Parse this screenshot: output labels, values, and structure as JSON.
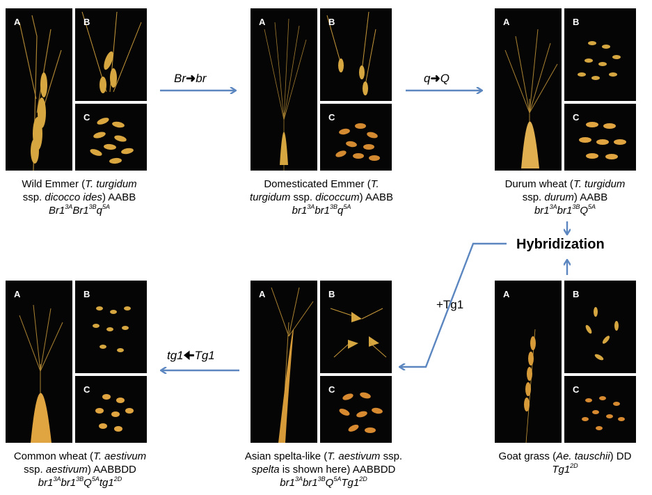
{
  "panels": [
    {
      "id": "wild-emmer",
      "labels": [
        "A",
        "B",
        "C"
      ],
      "caption": {
        "line1_pre": "Wild Emmer (",
        "line1_it": "T. turgidum",
        "line1_post": "",
        "line2_pre": "ssp. ",
        "line2_it": "dicocco ides",
        "line2_post": ") AABB"
      },
      "genotype": [
        {
          "t": "Br1",
          "s": "3A"
        },
        {
          "t": "Br1",
          "s": "3B"
        },
        {
          "t": "q",
          "s": "5A"
        }
      ]
    },
    {
      "id": "domesticated-emmer",
      "labels": [
        "A",
        "B",
        "C"
      ],
      "caption": {
        "line1_pre": "Domesticated Emmer (",
        "line1_it": "T.",
        "line1_post": "",
        "line2_pre": "",
        "line2_it": "turgidum",
        "line2_post": " ssp. ",
        "line2_it2": "dicoccum",
        "line2_post2": ") AABB"
      },
      "genotype": [
        {
          "t": "br1",
          "s": "3A"
        },
        {
          "t": "br1",
          "s": "3B"
        },
        {
          "t": "q",
          "s": "5A"
        }
      ]
    },
    {
      "id": "durum-wheat",
      "labels": [
        "A",
        "B",
        "C"
      ],
      "caption": {
        "line1_pre": "Durum wheat (",
        "line1_it": "T. turgidum",
        "line1_post": "",
        "line2_pre": "ssp. ",
        "line2_it": "durum",
        "line2_post": ") AABB"
      },
      "genotype": [
        {
          "t": "br1",
          "s": "3A"
        },
        {
          "t": "br1",
          "s": "3B"
        },
        {
          "t": "Q",
          "s": "5A"
        }
      ]
    },
    {
      "id": "common-wheat",
      "labels": [
        "A",
        "B",
        "C"
      ],
      "caption": {
        "line1_pre": "Common wheat (",
        "line1_it": "T. aestivum",
        "line1_post": "",
        "line2_pre": "ssp. ",
        "line2_it": "aestivum",
        "line2_post": ") AABBDD"
      },
      "genotype": [
        {
          "t": "br1",
          "s": "3A"
        },
        {
          "t": "br1",
          "s": "3B"
        },
        {
          "t": "Q",
          "s": "5A"
        },
        {
          "t": "tg1",
          "s": "2D"
        }
      ]
    },
    {
      "id": "asian-spelta",
      "labels": [
        "A",
        "B",
        "C"
      ],
      "caption": {
        "line1_pre": "Asian spelta-like (",
        "line1_it": "T. aestivum",
        "line1_post": " ssp.",
        "line2_pre": "",
        "line2_it": "spelta",
        "line2_post": " is shown here) AABBDD"
      },
      "genotype": [
        {
          "t": "br1",
          "s": "3A"
        },
        {
          "t": "br1",
          "s": "3B"
        },
        {
          "t": "Q",
          "s": "5A"
        },
        {
          "t": "Tg1",
          "s": "2D"
        }
      ]
    },
    {
      "id": "goat-grass",
      "labels": [
        "A",
        "B",
        "C"
      ],
      "caption": {
        "line1_pre": "Goat grass (",
        "line1_it": "Ae. tauschii",
        "line1_post": ") DD",
        "line2_pre": "",
        "line2_it": "",
        "line2_post": ""
      },
      "genotype": [
        {
          "t": "Tg1",
          "s": "2D"
        }
      ]
    }
  ],
  "arrows": {
    "br": {
      "from": "Br",
      "to": "br"
    },
    "q": {
      "from": "q",
      "to": "Q"
    },
    "tg": {
      "from": "tg1",
      "to": "Tg1"
    },
    "plus_tg1": "+Tg1",
    "hybridization": "Hybridization"
  },
  "colors": {
    "arrow": "#5b86c0",
    "photo_bg": "#050505",
    "grain": "#d9a640"
  }
}
